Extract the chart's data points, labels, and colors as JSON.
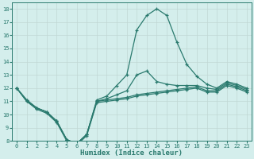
{
  "xlabel": "Humidex (Indice chaleur)",
  "x_values": [
    0,
    1,
    2,
    3,
    4,
    5,
    6,
    7,
    8,
    9,
    10,
    11,
    12,
    13,
    14,
    15,
    16,
    17,
    18,
    19,
    20,
    21,
    22,
    23
  ],
  "line_big": [
    12,
    11.1,
    10.5,
    10.2,
    9.5,
    8.1,
    7.8,
    8.5,
    11.1,
    11.4,
    12.2,
    13.0,
    16.4,
    17.5,
    18.0,
    17.5,
    15.5,
    13.8,
    12.9,
    12.3,
    12.0,
    12.5,
    12.3,
    12.0
  ],
  "line_mid": [
    12,
    11.1,
    10.5,
    10.2,
    9.5,
    8.1,
    7.8,
    8.5,
    11.0,
    11.2,
    11.5,
    11.8,
    13.0,
    13.3,
    12.5,
    12.3,
    12.2,
    12.2,
    12.2,
    12.0,
    11.9,
    12.4,
    12.2,
    11.9
  ],
  "line_flat1": [
    12,
    11.0,
    10.5,
    10.2,
    9.5,
    8.1,
    7.8,
    8.5,
    11.0,
    11.1,
    11.2,
    11.3,
    11.5,
    11.6,
    11.7,
    11.8,
    11.9,
    12.0,
    12.1,
    11.8,
    11.8,
    12.3,
    12.1,
    11.8
  ],
  "line_flat2": [
    12,
    11.0,
    10.4,
    10.1,
    9.4,
    8.0,
    7.7,
    8.4,
    10.9,
    11.0,
    11.1,
    11.2,
    11.4,
    11.5,
    11.6,
    11.7,
    11.8,
    11.9,
    12.0,
    11.7,
    11.7,
    12.2,
    12.0,
    11.7
  ],
  "ylim": [
    8,
    18.5
  ],
  "xlim": [
    -0.5,
    23.5
  ],
  "yticks": [
    8,
    9,
    10,
    11,
    12,
    13,
    14,
    15,
    16,
    17,
    18
  ],
  "xticks": [
    0,
    1,
    2,
    3,
    4,
    5,
    6,
    7,
    8,
    9,
    10,
    11,
    12,
    13,
    14,
    15,
    16,
    17,
    18,
    19,
    20,
    21,
    22,
    23
  ],
  "line_color": "#2a7a6e",
  "bg_color": "#d4eeec",
  "grid_color": "#b8dbd8",
  "tick_fontsize": 5.0,
  "xlabel_fontsize": 6.5
}
